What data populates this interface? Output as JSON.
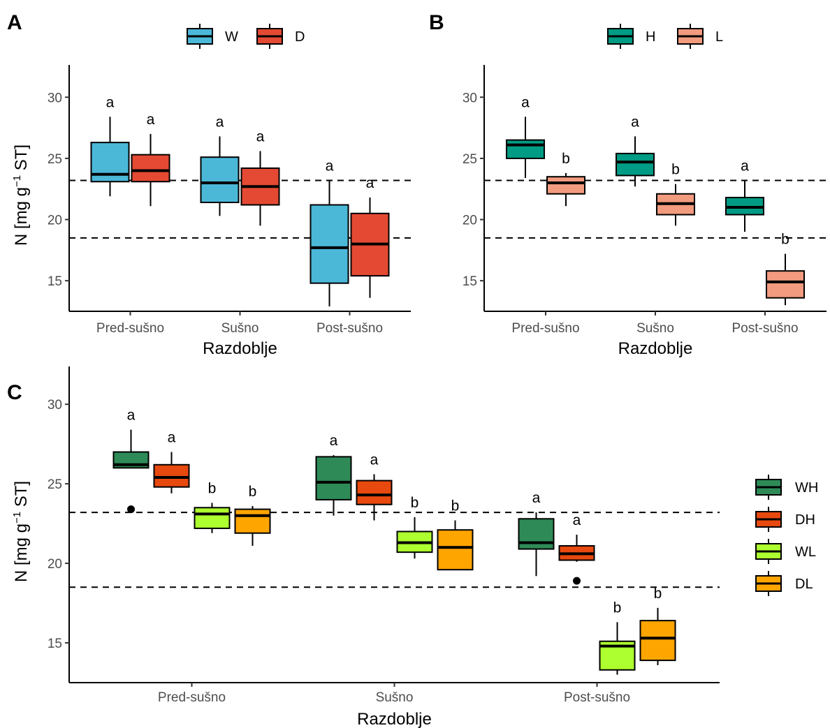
{
  "chart_data": [
    {
      "type": "boxplot",
      "panel_label": "A",
      "xlabel": "Razdoblje",
      "ylabel": "N [mg g−1 ST]",
      "ylim": [
        12.5,
        31.5
      ],
      "yticks": [
        15,
        20,
        25,
        30
      ],
      "categories": [
        "Pred-sušno",
        "Sušno",
        "Post-sušno"
      ],
      "legend": "top",
      "reference_lines": [
        23.2,
        18.5
      ],
      "series": [
        {
          "name": "W",
          "color": "#4BB8D8",
          "boxes": [
            {
              "whisker_low": 21.9,
              "q1": 23.1,
              "median": 23.7,
              "q3": 26.3,
              "whisker_high": 28.4,
              "outliers": []
            },
            {
              "whisker_low": 20.3,
              "q1": 21.4,
              "median": 23.0,
              "q3": 25.1,
              "whisker_high": 26.8,
              "outliers": []
            },
            {
              "whisker_low": 12.9,
              "q1": 14.8,
              "median": 17.7,
              "q3": 21.2,
              "whisker_high": 23.2,
              "outliers": []
            }
          ],
          "sig_letters": [
            "a",
            "a",
            "a"
          ]
        },
        {
          "name": "D",
          "color": "#E44A33",
          "boxes": [
            {
              "whisker_low": 21.1,
              "q1": 23.1,
              "median": 24.0,
              "q3": 25.3,
              "whisker_high": 27.0,
              "outliers": []
            },
            {
              "whisker_low": 19.5,
              "q1": 21.2,
              "median": 22.7,
              "q3": 24.2,
              "whisker_high": 25.6,
              "outliers": []
            },
            {
              "whisker_low": 13.6,
              "q1": 15.4,
              "median": 18.0,
              "q3": 20.5,
              "whisker_high": 21.8,
              "outliers": []
            }
          ],
          "sig_letters": [
            "a",
            "a",
            "a"
          ]
        }
      ]
    },
    {
      "type": "boxplot",
      "panel_label": "B",
      "xlabel": "Razdoblje",
      "ylabel": "",
      "ylim": [
        12.5,
        31.5
      ],
      "yticks": [
        15,
        20,
        25,
        30
      ],
      "categories": [
        "Pred-sušno",
        "Sušno",
        "Post-sušno"
      ],
      "legend": "top",
      "reference_lines": [
        23.2,
        18.5
      ],
      "series": [
        {
          "name": "H",
          "color": "#009B84",
          "boxes": [
            {
              "whisker_low": 23.4,
              "q1": 25.0,
              "median": 26.1,
              "q3": 26.5,
              "whisker_high": 28.4,
              "outliers": []
            },
            {
              "whisker_low": 22.7,
              "q1": 23.6,
              "median": 24.7,
              "q3": 25.4,
              "whisker_high": 26.8,
              "outliers": []
            },
            {
              "whisker_low": 19.0,
              "q1": 20.4,
              "median": 21.0,
              "q3": 21.8,
              "whisker_high": 23.2,
              "outliers": []
            }
          ],
          "sig_letters": [
            "a",
            "a",
            "a"
          ]
        },
        {
          "name": "L",
          "color": "#F39B7F",
          "boxes": [
            {
              "whisker_low": 21.1,
              "q1": 22.1,
              "median": 23.0,
              "q3": 23.5,
              "whisker_high": 23.8,
              "outliers": []
            },
            {
              "whisker_low": 19.5,
              "q1": 20.4,
              "median": 21.3,
              "q3": 22.1,
              "whisker_high": 22.9,
              "outliers": []
            },
            {
              "whisker_low": 13.0,
              "q1": 13.6,
              "median": 14.9,
              "q3": 15.8,
              "whisker_high": 17.2,
              "outliers": []
            }
          ],
          "sig_letters": [
            "b",
            "b",
            "b"
          ]
        }
      ]
    },
    {
      "type": "boxplot",
      "panel_label": "C",
      "xlabel": "Razdoblje",
      "ylabel": "N [mg g−1 ST]",
      "ylim": [
        12.5,
        31.5
      ],
      "yticks": [
        15,
        20,
        25,
        30
      ],
      "categories": [
        "Pred-sušno",
        "Sušno",
        "Post-sušno"
      ],
      "legend": "right",
      "reference_lines": [
        23.2,
        18.5
      ],
      "series": [
        {
          "name": "WH",
          "color": "#2E8B57",
          "boxes": [
            {
              "whisker_low": 26.0,
              "q1": 26.0,
              "median": 26.2,
              "q3": 27.0,
              "whisker_high": 28.4,
              "outliers": [
                23.4
              ]
            },
            {
              "whisker_low": 23.0,
              "q1": 24.0,
              "median": 25.1,
              "q3": 26.7,
              "whisker_high": 26.8,
              "outliers": []
            },
            {
              "whisker_low": 19.2,
              "q1": 20.9,
              "median": 21.3,
              "q3": 22.8,
              "whisker_high": 23.2,
              "outliers": []
            }
          ],
          "sig_letters": [
            "a",
            "a",
            "a"
          ]
        },
        {
          "name": "DH",
          "color": "#E8490F",
          "boxes": [
            {
              "whisker_low": 24.4,
              "q1": 24.8,
              "median": 25.4,
              "q3": 26.2,
              "whisker_high": 27.0,
              "outliers": []
            },
            {
              "whisker_low": 22.7,
              "q1": 23.7,
              "median": 24.3,
              "q3": 25.2,
              "whisker_high": 25.6,
              "outliers": []
            },
            {
              "whisker_low": 20.1,
              "q1": 20.2,
              "median": 20.6,
              "q3": 21.1,
              "whisker_high": 21.8,
              "outliers": [
                18.9
              ]
            }
          ],
          "sig_letters": [
            "a",
            "a",
            "a"
          ]
        },
        {
          "name": "WL",
          "color": "#ADFF2F",
          "boxes": [
            {
              "whisker_low": 21.9,
              "q1": 22.2,
              "median": 23.1,
              "q3": 23.5,
              "whisker_high": 23.8,
              "outliers": []
            },
            {
              "whisker_low": 20.3,
              "q1": 20.7,
              "median": 21.3,
              "q3": 22.0,
              "whisker_high": 22.9,
              "outliers": []
            },
            {
              "whisker_low": 13.0,
              "q1": 13.3,
              "median": 14.8,
              "q3": 15.1,
              "whisker_high": 16.3,
              "outliers": []
            }
          ],
          "sig_letters": [
            "b",
            "b",
            "b"
          ]
        },
        {
          "name": "DL",
          "color": "#FFA500",
          "boxes": [
            {
              "whisker_low": 21.1,
              "q1": 21.9,
              "median": 23.0,
              "q3": 23.4,
              "whisker_high": 23.6,
              "outliers": []
            },
            {
              "whisker_low": 19.6,
              "q1": 19.6,
              "median": 21.0,
              "q3": 22.1,
              "whisker_high": 22.7,
              "outliers": []
            },
            {
              "whisker_low": 13.6,
              "q1": 13.9,
              "median": 15.3,
              "q3": 16.4,
              "whisker_high": 17.2,
              "outliers": []
            }
          ],
          "sig_letters": [
            "b",
            "b",
            "b"
          ]
        }
      ]
    }
  ]
}
